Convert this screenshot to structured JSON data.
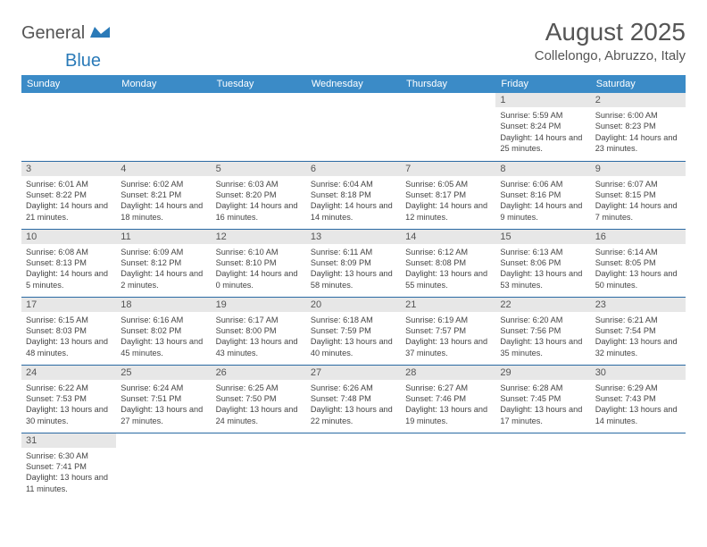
{
  "logo": {
    "general": "General",
    "blue": "Blue"
  },
  "title": "August 2025",
  "location": "Collelongo, Abruzzo, Italy",
  "colors": {
    "header_bg": "#3b8bc7",
    "header_fg": "#ffffff",
    "daynum_bg": "#e7e7e7",
    "daynum_fg": "#555555",
    "row_border": "#2a6aa3",
    "logo_blue": "#2a7ab8"
  },
  "weekdays": [
    "Sunday",
    "Monday",
    "Tuesday",
    "Wednesday",
    "Thursday",
    "Friday",
    "Saturday"
  ],
  "weeks": [
    [
      null,
      null,
      null,
      null,
      null,
      {
        "n": "1",
        "sunrise": "Sunrise: 5:59 AM",
        "sunset": "Sunset: 8:24 PM",
        "daylight": "Daylight: 14 hours and 25 minutes."
      },
      {
        "n": "2",
        "sunrise": "Sunrise: 6:00 AM",
        "sunset": "Sunset: 8:23 PM",
        "daylight": "Daylight: 14 hours and 23 minutes."
      }
    ],
    [
      {
        "n": "3",
        "sunrise": "Sunrise: 6:01 AM",
        "sunset": "Sunset: 8:22 PM",
        "daylight": "Daylight: 14 hours and 21 minutes."
      },
      {
        "n": "4",
        "sunrise": "Sunrise: 6:02 AM",
        "sunset": "Sunset: 8:21 PM",
        "daylight": "Daylight: 14 hours and 18 minutes."
      },
      {
        "n": "5",
        "sunrise": "Sunrise: 6:03 AM",
        "sunset": "Sunset: 8:20 PM",
        "daylight": "Daylight: 14 hours and 16 minutes."
      },
      {
        "n": "6",
        "sunrise": "Sunrise: 6:04 AM",
        "sunset": "Sunset: 8:18 PM",
        "daylight": "Daylight: 14 hours and 14 minutes."
      },
      {
        "n": "7",
        "sunrise": "Sunrise: 6:05 AM",
        "sunset": "Sunset: 8:17 PM",
        "daylight": "Daylight: 14 hours and 12 minutes."
      },
      {
        "n": "8",
        "sunrise": "Sunrise: 6:06 AM",
        "sunset": "Sunset: 8:16 PM",
        "daylight": "Daylight: 14 hours and 9 minutes."
      },
      {
        "n": "9",
        "sunrise": "Sunrise: 6:07 AM",
        "sunset": "Sunset: 8:15 PM",
        "daylight": "Daylight: 14 hours and 7 minutes."
      }
    ],
    [
      {
        "n": "10",
        "sunrise": "Sunrise: 6:08 AM",
        "sunset": "Sunset: 8:13 PM",
        "daylight": "Daylight: 14 hours and 5 minutes."
      },
      {
        "n": "11",
        "sunrise": "Sunrise: 6:09 AM",
        "sunset": "Sunset: 8:12 PM",
        "daylight": "Daylight: 14 hours and 2 minutes."
      },
      {
        "n": "12",
        "sunrise": "Sunrise: 6:10 AM",
        "sunset": "Sunset: 8:10 PM",
        "daylight": "Daylight: 14 hours and 0 minutes."
      },
      {
        "n": "13",
        "sunrise": "Sunrise: 6:11 AM",
        "sunset": "Sunset: 8:09 PM",
        "daylight": "Daylight: 13 hours and 58 minutes."
      },
      {
        "n": "14",
        "sunrise": "Sunrise: 6:12 AM",
        "sunset": "Sunset: 8:08 PM",
        "daylight": "Daylight: 13 hours and 55 minutes."
      },
      {
        "n": "15",
        "sunrise": "Sunrise: 6:13 AM",
        "sunset": "Sunset: 8:06 PM",
        "daylight": "Daylight: 13 hours and 53 minutes."
      },
      {
        "n": "16",
        "sunrise": "Sunrise: 6:14 AM",
        "sunset": "Sunset: 8:05 PM",
        "daylight": "Daylight: 13 hours and 50 minutes."
      }
    ],
    [
      {
        "n": "17",
        "sunrise": "Sunrise: 6:15 AM",
        "sunset": "Sunset: 8:03 PM",
        "daylight": "Daylight: 13 hours and 48 minutes."
      },
      {
        "n": "18",
        "sunrise": "Sunrise: 6:16 AM",
        "sunset": "Sunset: 8:02 PM",
        "daylight": "Daylight: 13 hours and 45 minutes."
      },
      {
        "n": "19",
        "sunrise": "Sunrise: 6:17 AM",
        "sunset": "Sunset: 8:00 PM",
        "daylight": "Daylight: 13 hours and 43 minutes."
      },
      {
        "n": "20",
        "sunrise": "Sunrise: 6:18 AM",
        "sunset": "Sunset: 7:59 PM",
        "daylight": "Daylight: 13 hours and 40 minutes."
      },
      {
        "n": "21",
        "sunrise": "Sunrise: 6:19 AM",
        "sunset": "Sunset: 7:57 PM",
        "daylight": "Daylight: 13 hours and 37 minutes."
      },
      {
        "n": "22",
        "sunrise": "Sunrise: 6:20 AM",
        "sunset": "Sunset: 7:56 PM",
        "daylight": "Daylight: 13 hours and 35 minutes."
      },
      {
        "n": "23",
        "sunrise": "Sunrise: 6:21 AM",
        "sunset": "Sunset: 7:54 PM",
        "daylight": "Daylight: 13 hours and 32 minutes."
      }
    ],
    [
      {
        "n": "24",
        "sunrise": "Sunrise: 6:22 AM",
        "sunset": "Sunset: 7:53 PM",
        "daylight": "Daylight: 13 hours and 30 minutes."
      },
      {
        "n": "25",
        "sunrise": "Sunrise: 6:24 AM",
        "sunset": "Sunset: 7:51 PM",
        "daylight": "Daylight: 13 hours and 27 minutes."
      },
      {
        "n": "26",
        "sunrise": "Sunrise: 6:25 AM",
        "sunset": "Sunset: 7:50 PM",
        "daylight": "Daylight: 13 hours and 24 minutes."
      },
      {
        "n": "27",
        "sunrise": "Sunrise: 6:26 AM",
        "sunset": "Sunset: 7:48 PM",
        "daylight": "Daylight: 13 hours and 22 minutes."
      },
      {
        "n": "28",
        "sunrise": "Sunrise: 6:27 AM",
        "sunset": "Sunset: 7:46 PM",
        "daylight": "Daylight: 13 hours and 19 minutes."
      },
      {
        "n": "29",
        "sunrise": "Sunrise: 6:28 AM",
        "sunset": "Sunset: 7:45 PM",
        "daylight": "Daylight: 13 hours and 17 minutes."
      },
      {
        "n": "30",
        "sunrise": "Sunrise: 6:29 AM",
        "sunset": "Sunset: 7:43 PM",
        "daylight": "Daylight: 13 hours and 14 minutes."
      }
    ],
    [
      {
        "n": "31",
        "sunrise": "Sunrise: 6:30 AM",
        "sunset": "Sunset: 7:41 PM",
        "daylight": "Daylight: 13 hours and 11 minutes."
      },
      null,
      null,
      null,
      null,
      null,
      null
    ]
  ]
}
